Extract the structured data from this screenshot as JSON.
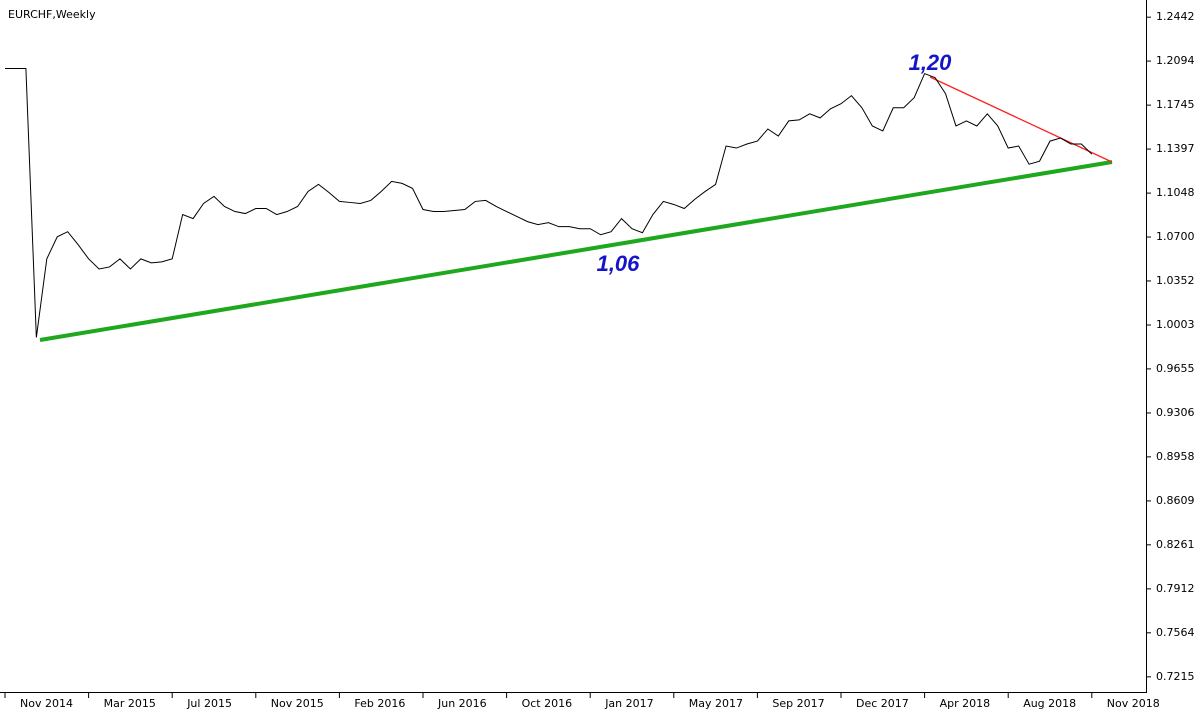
{
  "chart_data": {
    "type": "line",
    "title": "EURCHF,Weekly",
    "annotations": [
      "1,20",
      "1,06"
    ],
    "categories": [
      "Nov 2014",
      null,
      null,
      null,
      null,
      null,
      null,
      null,
      "Mar 2015",
      null,
      null,
      null,
      null,
      null,
      null,
      null,
      "Jul 2015",
      null,
      null,
      null,
      null,
      null,
      null,
      null,
      "Nov 2015",
      null,
      null,
      null,
      null,
      null,
      null,
      null,
      "Feb 2016",
      null,
      null,
      null,
      null,
      null,
      null,
      null,
      "Jun 2016",
      null,
      null,
      null,
      null,
      null,
      null,
      null,
      "Oct 2016",
      null,
      null,
      null,
      null,
      null,
      null,
      null,
      "Jan 2017",
      null,
      null,
      null,
      null,
      null,
      null,
      null,
      "May 2017",
      null,
      null,
      null,
      null,
      null,
      null,
      null,
      "Sep 2017",
      null,
      null,
      null,
      null,
      null,
      null,
      null,
      "Dec 2017",
      null,
      null,
      null,
      null,
      null,
      null,
      null,
      "Apr 2018",
      null,
      null,
      null,
      null,
      null,
      null,
      null,
      "Aug 2018",
      null,
      null,
      null,
      null,
      null,
      null,
      null,
      "Nov 2018"
    ],
    "series": [
      {
        "color": "#000000",
        "values": [
          1.2035,
          1.2035,
          1.2035,
          0.9904,
          1.0527,
          1.0702,
          1.0742,
          1.0639,
          1.0527,
          1.0447,
          1.0463,
          1.0527,
          1.0447,
          1.0527,
          1.0495,
          1.0503,
          1.0527,
          1.0878,
          1.0846,
          1.0966,
          1.1022,
          1.0942,
          1.0902,
          1.0886,
          1.0926,
          1.0926,
          1.0878,
          1.0902,
          1.0942,
          1.1061,
          1.1117,
          1.1053,
          1.0982,
          1.0974,
          1.0966,
          1.099,
          1.1061,
          1.1141,
          1.1125,
          1.1085,
          1.0918,
          1.0902,
          1.0902,
          1.091,
          1.0918,
          1.0982,
          1.099,
          1.0942,
          1.0902,
          1.0862,
          1.0822,
          1.0798,
          1.0814,
          1.0782,
          1.0782,
          1.0766,
          1.0766,
          1.0718,
          1.0742,
          1.0846,
          1.0766,
          1.0734,
          1.0878,
          1.0982,
          1.0958,
          1.0926,
          1.0998,
          1.1061,
          1.1117,
          1.1421,
          1.1405,
          1.1437,
          1.146,
          1.1556,
          1.15,
          1.162,
          1.1628,
          1.1676,
          1.1644,
          1.1716,
          1.1756,
          1.182,
          1.1724,
          1.158,
          1.154,
          1.1724,
          1.1724,
          1.1804,
          1.1995,
          1.1963,
          1.1836,
          1.158,
          1.162,
          1.158,
          1.1676,
          1.158,
          1.1405,
          1.1421,
          1.1277,
          1.1301,
          1.146,
          1.1484,
          1.1437,
          1.1437,
          1.1357
        ]
      }
    ],
    "ylim": [
      0.7095,
      1.2578
    ],
    "yticks": [
      1.2442,
      1.2094,
      1.1745,
      1.1397,
      1.1048,
      {
        "value": 1.07,
        "label": "1.0700"
      },
      1.0352,
      1.0003,
      0.9655,
      0.9306,
      0.8958,
      0.8609,
      0.8261,
      0.7912,
      0.7564,
      0.7215
    ]
  }
}
